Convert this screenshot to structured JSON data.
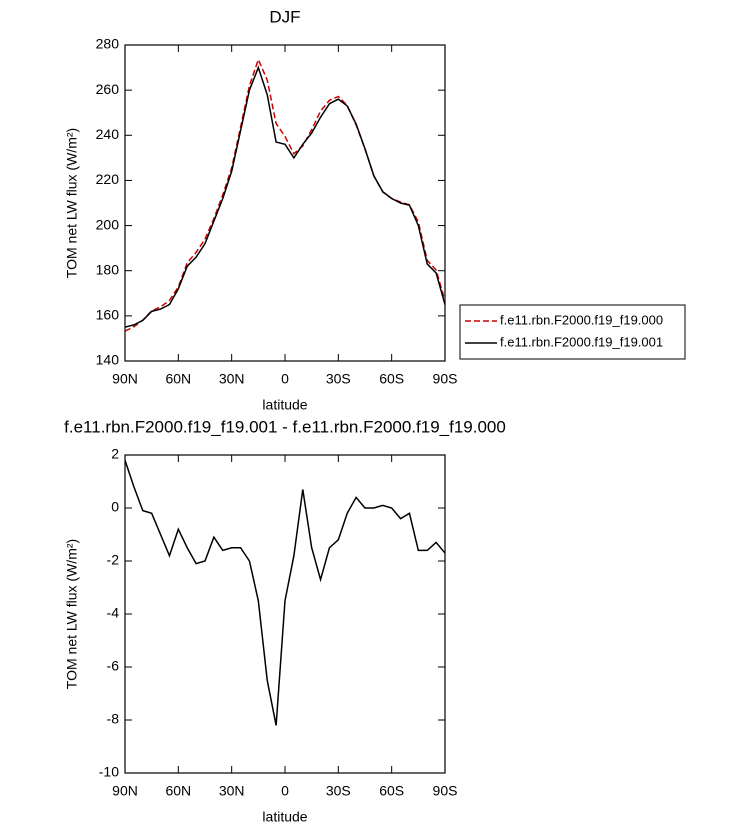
{
  "chart_data": [
    {
      "type": "line",
      "title": "DJF",
      "x_label": "latitude",
      "y_label": "TOM net LW flux (W/m²)",
      "x": [
        90,
        85,
        80,
        75,
        70,
        65,
        60,
        55,
        50,
        45,
        40,
        35,
        30,
        25,
        20,
        15,
        10,
        5,
        0,
        -5,
        -10,
        -15,
        -20,
        -25,
        -30,
        -35,
        -40,
        -45,
        -50,
        -55,
        -60,
        -65,
        -70,
        -75,
        -80,
        -85,
        -90
      ],
      "series": [
        {
          "name": "f.e11.rbn.F2000.f19_f19.000",
          "color": "#cc0000",
          "dash": "dashed",
          "values": [
            153.2,
            155.2,
            158.1,
            162.2,
            164,
            166.8,
            172.8,
            183.5,
            188.1,
            194,
            203.1,
            213.6,
            225.5,
            243.5,
            262,
            273.5,
            264.5,
            245.2,
            239.5,
            231.8,
            235.3,
            242.5,
            250.7,
            255.5,
            257.2,
            253.2,
            244.6,
            234,
            222,
            214.9,
            212,
            210.4,
            209.2,
            201.6,
            184.6,
            180.3,
            166.7
          ]
        },
        {
          "name": "f.e11.rbn.F2000.f19_f19.001",
          "color": "#000000",
          "values": [
            155,
            156,
            158,
            162,
            163,
            165,
            172,
            182,
            186,
            192,
            202,
            212,
            224,
            242,
            260,
            270,
            258,
            237,
            236,
            230,
            236,
            241,
            248,
            254,
            256,
            253,
            245,
            234,
            222,
            215,
            212,
            210,
            209,
            200,
            183,
            179,
            165
          ]
        }
      ],
      "xlim": [
        90,
        -90
      ],
      "xticks": [
        {
          "value": 90,
          "label": "90N"
        },
        {
          "value": 60,
          "label": "60N"
        },
        {
          "value": 30,
          "label": "30N"
        },
        0,
        {
          "value": -30,
          "label": "30S"
        },
        {
          "value": -60,
          "label": "60S"
        },
        {
          "value": -90,
          "label": "90S"
        }
      ],
      "ylim": [
        140,
        280
      ],
      "yticks": [
        140,
        160,
        180,
        200,
        220,
        240,
        260,
        280
      ],
      "legend": "right"
    },
    {
      "type": "line",
      "title": "f.e11.rbn.F2000.f19_f19.001 - f.e11.rbn.F2000.f19_f19.000",
      "x_label": "latitude",
      "y_label": "TOM net LW flux (W/m²)",
      "x": [
        90,
        85,
        80,
        75,
        70,
        65,
        60,
        55,
        50,
        45,
        40,
        35,
        30,
        25,
        20,
        15,
        10,
        5,
        0,
        -5,
        -10,
        -15,
        -20,
        -25,
        -30,
        -35,
        -40,
        -45,
        -50,
        -55,
        -60,
        -65,
        -70,
        -75,
        -80,
        -85,
        -90
      ],
      "series": [
        {
          "color": "#000000",
          "values": [
            1.8,
            0.8,
            -0.1,
            -0.2,
            -1.0,
            -1.8,
            -0.8,
            -1.5,
            -2.1,
            -2.0,
            -1.1,
            -1.6,
            -1.5,
            -1.5,
            -2.0,
            -3.5,
            -6.5,
            -8.2,
            -3.5,
            -1.8,
            0.7,
            -1.5,
            -2.7,
            -1.5,
            -1.2,
            -0.2,
            0.4,
            0.0,
            0.0,
            0.1,
            0.0,
            -0.4,
            -0.2,
            -1.6,
            -1.6,
            -1.3,
            -1.7
          ]
        }
      ],
      "xlim": [
        90,
        -90
      ],
      "xticks": [
        {
          "value": 90,
          "label": "90N"
        },
        {
          "value": 60,
          "label": "60N"
        },
        {
          "value": 30,
          "label": "30N"
        },
        0,
        {
          "value": -30,
          "label": "30S"
        },
        {
          "value": -60,
          "label": "60S"
        },
        {
          "value": -90,
          "label": "90S"
        }
      ],
      "ylim": [
        -10,
        2
      ],
      "yticks": [
        -10,
        -8,
        -6,
        -4,
        -2,
        0,
        2
      ]
    }
  ]
}
